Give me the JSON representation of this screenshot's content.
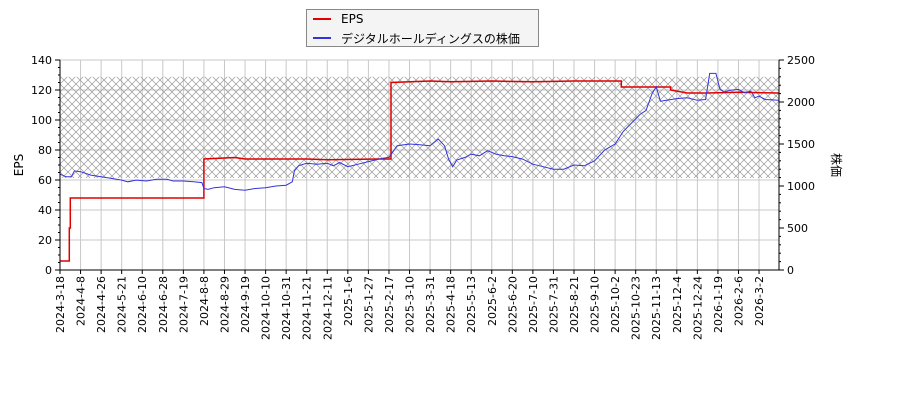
{
  "legend": {
    "items": [
      {
        "label": "EPS",
        "color": "#e00000"
      },
      {
        "label": "デジタルホールディングスの株価",
        "color": "#3333dd"
      }
    ]
  },
  "axes": {
    "left_label": "EPS",
    "right_label": "株価",
    "left_ticks": [
      "0",
      "20",
      "40",
      "60",
      "80",
      "100",
      "120",
      "140"
    ],
    "right_ticks": [
      "0",
      "500",
      "1000",
      "1500",
      "2000",
      "2500"
    ]
  },
  "chart_data": {
    "type": "line",
    "title": "",
    "xlabel": "",
    "ylabel": "EPS",
    "y2label": "株価",
    "ylim": [
      0,
      140
    ],
    "y2lim": [
      0,
      2500
    ],
    "grid": true,
    "legend_position": "top-center",
    "hatched_band_y2": [
      1095,
      2300
    ],
    "x_ticks": [
      "2024-3-18",
      "2024-4-8",
      "2024-4-26",
      "2024-5-21",
      "2024-6-10",
      "2024-6-28",
      "2024-7-19",
      "2024-8-8",
      "2024-8-29",
      "2024-9-19",
      "2024-10-10",
      "2024-10-31",
      "2024-11-21",
      "2024-12-11",
      "2025-1-6",
      "2025-1-27",
      "2025-2-17",
      "2025-3-10",
      "2025-3-31",
      "2025-4-18",
      "2025-5-13",
      "2025-6-2",
      "2025-6-20",
      "2025-7-10",
      "2025-7-31",
      "2025-8-21",
      "2025-9-10",
      "2025-10-2",
      "2025-10-23",
      "2025-11-13",
      "2025-12-4",
      "2025-12-24",
      "2026-1-19",
      "2026-2-6",
      "2026-3-2"
    ],
    "series": [
      {
        "name": "EPS",
        "axis": "left",
        "color": "#e00000",
        "step": true,
        "points": [
          [
            0,
            6
          ],
          [
            0.45,
            6
          ],
          [
            0.45,
            28
          ],
          [
            0.5,
            28
          ],
          [
            0.5,
            48
          ],
          [
            7,
            48
          ],
          [
            7,
            74
          ],
          [
            8.5,
            75
          ],
          [
            9,
            74
          ],
          [
            12,
            74
          ],
          [
            13,
            73.5
          ],
          [
            15.5,
            74
          ],
          [
            16.1,
            74
          ],
          [
            16.1,
            125
          ],
          [
            18,
            126
          ],
          [
            19,
            125.5
          ],
          [
            21,
            126
          ],
          [
            23,
            125.5
          ],
          [
            25,
            126
          ],
          [
            27.3,
            126
          ],
          [
            27.3,
            122
          ],
          [
            29.7,
            122
          ],
          [
            29.7,
            120
          ],
          [
            30.5,
            118
          ],
          [
            31.5,
            118
          ],
          [
            33,
            118.5
          ],
          [
            35,
            118
          ]
        ]
      },
      {
        "name": "デジタルホールディングスの株価",
        "axis": "right",
        "color": "#3333dd",
        "points": [
          [
            0,
            1140
          ],
          [
            0.3,
            1110
          ],
          [
            0.55,
            1110
          ],
          [
            0.7,
            1180
          ],
          [
            1,
            1170
          ],
          [
            1.5,
            1130
          ],
          [
            2,
            1110
          ],
          [
            2.5,
            1090
          ],
          [
            3,
            1070
          ],
          [
            3.3,
            1050
          ],
          [
            3.7,
            1070
          ],
          [
            4.2,
            1060
          ],
          [
            4.7,
            1080
          ],
          [
            5.2,
            1080
          ],
          [
            5.5,
            1060
          ],
          [
            6,
            1060
          ],
          [
            6.5,
            1050
          ],
          [
            6.9,
            1040
          ],
          [
            7,
            970
          ],
          [
            7.2,
            960
          ],
          [
            7.5,
            980
          ],
          [
            8,
            990
          ],
          [
            8.5,
            960
          ],
          [
            9,
            950
          ],
          [
            9.5,
            970
          ],
          [
            10,
            980
          ],
          [
            10.5,
            1000
          ],
          [
            11,
            1010
          ],
          [
            11.3,
            1050
          ],
          [
            11.4,
            1180
          ],
          [
            11.6,
            1240
          ],
          [
            12,
            1270
          ],
          [
            12.5,
            1260
          ],
          [
            13,
            1270
          ],
          [
            13.3,
            1240
          ],
          [
            13.6,
            1280
          ],
          [
            14,
            1230
          ],
          [
            14.5,
            1260
          ],
          [
            15,
            1290
          ],
          [
            15.5,
            1320
          ],
          [
            15.7,
            1330
          ],
          [
            16,
            1340
          ],
          [
            16.4,
            1480
          ],
          [
            17,
            1500
          ],
          [
            17.5,
            1490
          ],
          [
            18,
            1480
          ],
          [
            18.4,
            1560
          ],
          [
            18.7,
            1480
          ],
          [
            18.9,
            1320
          ],
          [
            19.1,
            1230
          ],
          [
            19.3,
            1310
          ],
          [
            19.7,
            1340
          ],
          [
            20,
            1380
          ],
          [
            20.4,
            1360
          ],
          [
            20.8,
            1420
          ],
          [
            21.2,
            1380
          ],
          [
            21.6,
            1360
          ],
          [
            22,
            1350
          ],
          [
            22.5,
            1320
          ],
          [
            23,
            1260
          ],
          [
            23.5,
            1230
          ],
          [
            24,
            1200
          ],
          [
            24.5,
            1200
          ],
          [
            25,
            1250
          ],
          [
            25.5,
            1240
          ],
          [
            26,
            1300
          ],
          [
            26.5,
            1430
          ],
          [
            27,
            1500
          ],
          [
            27.4,
            1650
          ],
          [
            27.8,
            1750
          ],
          [
            28.2,
            1850
          ],
          [
            28.5,
            1900
          ],
          [
            28.8,
            2100
          ],
          [
            29,
            2180
          ],
          [
            29.2,
            2010
          ],
          [
            29.5,
            2020
          ],
          [
            30,
            2040
          ],
          [
            30.5,
            2050
          ],
          [
            31,
            2020
          ],
          [
            31.4,
            2030
          ],
          [
            31.6,
            2340
          ],
          [
            31.9,
            2340
          ],
          [
            32.1,
            2150
          ],
          [
            32.3,
            2120
          ],
          [
            32.6,
            2140
          ],
          [
            33,
            2150
          ],
          [
            33.3,
            2110
          ],
          [
            33.6,
            2130
          ],
          [
            33.8,
            2050
          ],
          [
            34,
            2070
          ],
          [
            34.3,
            2030
          ],
          [
            35,
            2020
          ]
        ]
      }
    ]
  }
}
